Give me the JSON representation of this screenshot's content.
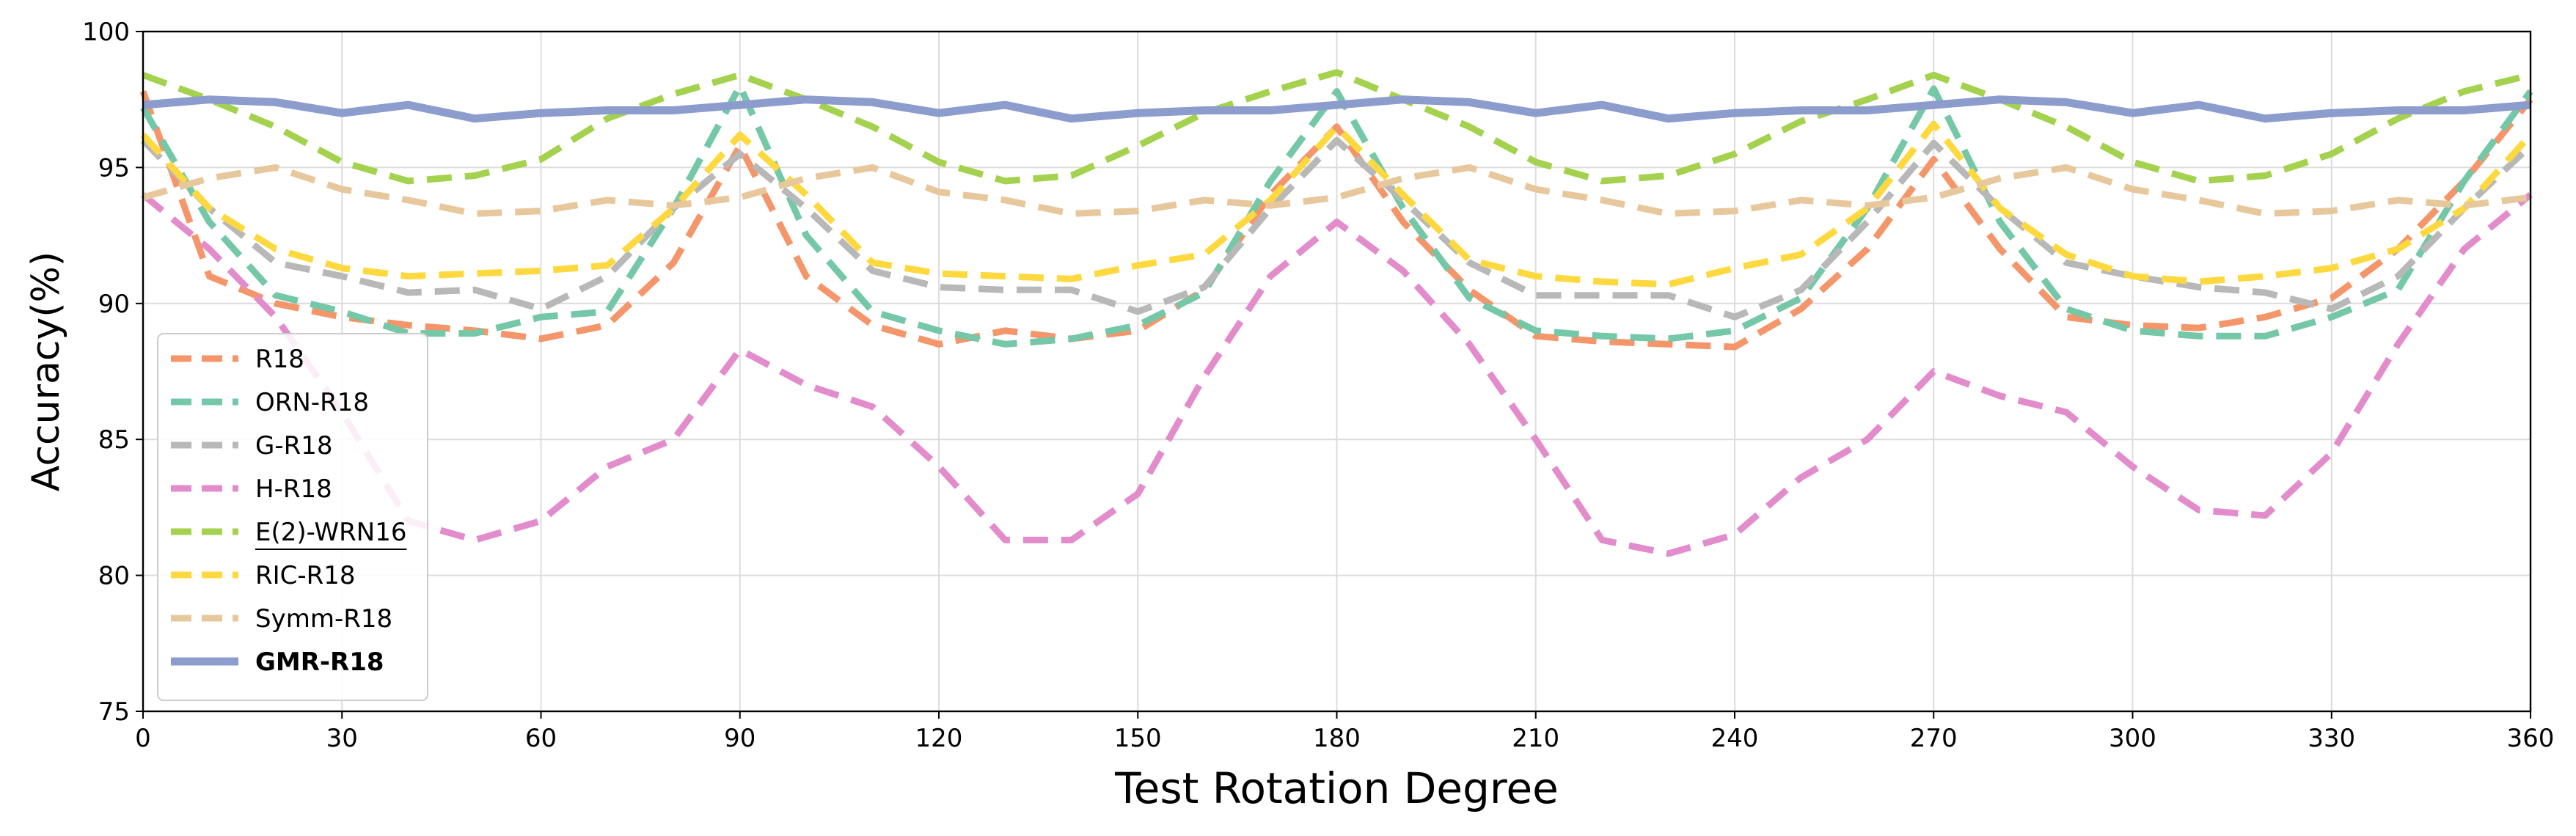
{
  "chart_data": {
    "type": "line",
    "title": "",
    "xlabel": "Test Rotation Degree",
    "ylabel": "Accuracy(%)",
    "xlim": [
      0,
      360
    ],
    "ylim": [
      75,
      100
    ],
    "grid": true,
    "legend_position": "center-left",
    "x": [
      0,
      10,
      20,
      30,
      40,
      50,
      60,
      70,
      80,
      90,
      100,
      110,
      120,
      130,
      140,
      150,
      160,
      170,
      180,
      190,
      200,
      210,
      220,
      230,
      240,
      250,
      260,
      270,
      280,
      290,
      300,
      310,
      320,
      330,
      340,
      350,
      360
    ],
    "x_ticks": [
      0,
      30,
      60,
      90,
      120,
      150,
      180,
      210,
      240,
      270,
      300,
      330,
      360
    ],
    "x_tick_labels": [
      "0",
      "30",
      "60",
      "90",
      "120",
      "150",
      "180",
      "210",
      "240",
      "270",
      "300",
      "330",
      "360"
    ],
    "y_ticks": [
      75,
      80,
      85,
      90,
      95,
      100
    ],
    "y_tick_labels": [
      "75",
      "80",
      "85",
      "90",
      "95",
      "100"
    ],
    "series": [
      {
        "name": "R18",
        "color": "#f4956a",
        "style": "dashed",
        "bold": false,
        "underline": false,
        "values": [
          97.8,
          91.0,
          90.0,
          89.5,
          89.2,
          89.0,
          88.7,
          89.2,
          91.5,
          95.8,
          91.0,
          89.2,
          88.5,
          89.0,
          88.7,
          89.0,
          90.5,
          94.0,
          96.5,
          93.0,
          90.5,
          88.8,
          88.6,
          88.5,
          88.4,
          89.8,
          92.0,
          95.3,
          92.0,
          89.5,
          89.2,
          89.1,
          89.5,
          90.2,
          92.0,
          94.5,
          97.5
        ]
      },
      {
        "name": "ORN-R18",
        "color": "#74c7a7",
        "style": "dashed",
        "bold": false,
        "underline": false,
        "values": [
          97.2,
          93.0,
          90.3,
          89.7,
          88.9,
          88.9,
          89.5,
          89.7,
          93.5,
          98.0,
          92.5,
          89.7,
          89.0,
          88.5,
          88.7,
          89.2,
          90.4,
          94.5,
          97.8,
          93.5,
          90.2,
          89.0,
          88.8,
          88.7,
          89.0,
          90.2,
          93.5,
          97.9,
          93.0,
          89.8,
          89.0,
          88.8,
          88.8,
          89.5,
          90.5,
          94.5,
          97.8
        ]
      },
      {
        "name": "G-R18",
        "color": "#b8b8b8",
        "style": "dashed",
        "bold": false,
        "underline": false,
        "values": [
          96.0,
          93.5,
          91.5,
          91.0,
          90.4,
          90.5,
          89.8,
          91.0,
          93.5,
          95.5,
          93.5,
          91.2,
          90.6,
          90.5,
          90.5,
          89.7,
          90.6,
          93.5,
          96.0,
          93.8,
          91.5,
          90.3,
          90.3,
          90.3,
          89.5,
          90.5,
          93.0,
          95.9,
          93.5,
          91.5,
          91.0,
          90.6,
          90.4,
          89.8,
          91.0,
          93.5,
          95.8
        ]
      },
      {
        "name": "H-R18",
        "color": "#e38ccb",
        "style": "dashed",
        "bold": false,
        "underline": false,
        "values": [
          94.0,
          92.0,
          89.5,
          86.0,
          82.0,
          81.3,
          82.0,
          84.0,
          85.0,
          88.3,
          87.0,
          86.2,
          84.0,
          81.3,
          81.3,
          83.0,
          87.3,
          91.0,
          93.0,
          91.2,
          88.5,
          85.0,
          81.3,
          80.8,
          81.5,
          83.6,
          85.0,
          87.5,
          86.6,
          86.0,
          84.0,
          82.4,
          82.2,
          84.5,
          88.5,
          92.0,
          94.0
        ]
      },
      {
        "name": "E(2)-WRN16",
        "color": "#a4d24e",
        "style": "dashed",
        "bold": false,
        "underline": true,
        "values": [
          98.4,
          97.5,
          96.5,
          95.2,
          94.5,
          94.7,
          95.3,
          96.8,
          97.7,
          98.4,
          97.5,
          96.5,
          95.2,
          94.5,
          94.7,
          95.8,
          97.0,
          97.8,
          98.5,
          97.5,
          96.5,
          95.2,
          94.5,
          94.7,
          95.5,
          96.7,
          97.5,
          98.4,
          97.5,
          96.5,
          95.2,
          94.5,
          94.7,
          95.5,
          96.8,
          97.8,
          98.4
        ]
      },
      {
        "name": "RIC-R18",
        "color": "#fdd93f",
        "style": "dashed",
        "bold": false,
        "underline": false,
        "values": [
          96.2,
          93.5,
          92.0,
          91.3,
          91.0,
          91.1,
          91.2,
          91.4,
          93.5,
          96.2,
          94.0,
          91.5,
          91.1,
          91.0,
          90.9,
          91.4,
          91.8,
          93.8,
          96.5,
          94.0,
          91.6,
          91.0,
          90.8,
          90.7,
          91.3,
          91.8,
          93.5,
          96.6,
          93.5,
          91.8,
          91.0,
          90.8,
          91.0,
          91.3,
          92.0,
          93.5,
          96.2
        ]
      },
      {
        "name": "Symm-R18",
        "color": "#e7c89c",
        "style": "dashed",
        "bold": false,
        "underline": false,
        "values": [
          93.9,
          94.6,
          95.0,
          94.2,
          93.8,
          93.3,
          93.4,
          93.8,
          93.6,
          93.9,
          94.6,
          95.0,
          94.1,
          93.8,
          93.3,
          93.4,
          93.8,
          93.6,
          93.9,
          94.6,
          95.0,
          94.2,
          93.8,
          93.3,
          93.4,
          93.8,
          93.6,
          93.9,
          94.6,
          95.0,
          94.2,
          93.8,
          93.3,
          93.4,
          93.8,
          93.6,
          93.9
        ]
      },
      {
        "name": "GMR-R18",
        "color": "#8c9ccc",
        "style": "solid",
        "bold": true,
        "underline": false,
        "values": [
          97.3,
          97.5,
          97.4,
          97.0,
          97.3,
          96.8,
          97.0,
          97.1,
          97.1,
          97.3,
          97.5,
          97.4,
          97.0,
          97.3,
          96.8,
          97.0,
          97.1,
          97.1,
          97.3,
          97.5,
          97.4,
          97.0,
          97.3,
          96.8,
          97.0,
          97.1,
          97.1,
          97.3,
          97.5,
          97.4,
          97.0,
          97.3,
          96.8,
          97.0,
          97.1,
          97.1,
          97.3
        ]
      }
    ]
  }
}
